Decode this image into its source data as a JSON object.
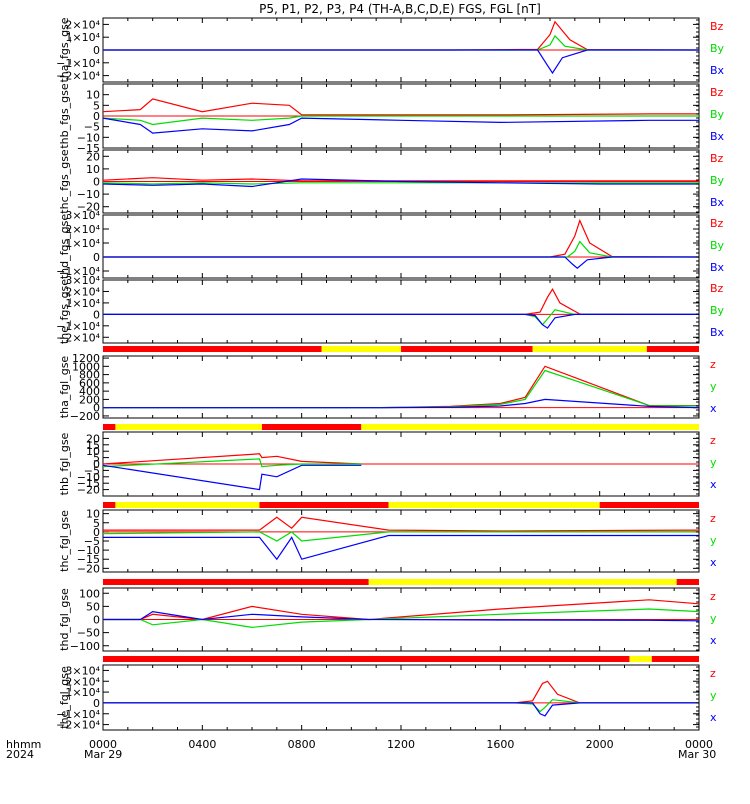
{
  "title": "P5, P1, P2, P3, P4 (TH-A,B,C,D,E) FGS, FGL [nT]",
  "footer": {
    "time_label": "hhmm",
    "year_label": "2024",
    "x_ticks": [
      "0000",
      "0400",
      "0800",
      "1200",
      "1600",
      "2000",
      "0000"
    ],
    "x_dates": [
      "Mar 29",
      "Mar 30"
    ]
  },
  "colors": {
    "x": "#0000ff",
    "y": "#00dd00",
    "z": "#ff0000",
    "bar_red": "#ff0000",
    "bar_yellow": "#ffff00"
  },
  "chart_data": [
    {
      "type": "line",
      "ylabel": "tha_fgs_gse",
      "ylim": [
        -25000,
        25000
      ],
      "yticks": [
        "2×10⁴",
        "1×10⁴",
        "0",
        "−1×10⁴",
        "−2×10⁴"
      ],
      "ytick_values": [
        20000,
        10000,
        0,
        -10000,
        -20000
      ],
      "legend": [
        "Bz",
        "By",
        "Bx"
      ],
      "series": [
        {
          "name": "Bz",
          "x": [
            0,
            14,
            17.5,
            18.0,
            18.2,
            18.8,
            19.5,
            24
          ],
          "y": [
            0,
            0,
            500,
            12000,
            22000,
            8000,
            300,
            0
          ]
        },
        {
          "name": "By",
          "x": [
            0,
            14,
            17.5,
            18.0,
            18.2,
            18.6,
            19.5,
            24
          ],
          "y": [
            0,
            0,
            0,
            4000,
            11000,
            3000,
            0,
            0
          ]
        },
        {
          "name": "Bx",
          "x": [
            0,
            14,
            17.5,
            17.9,
            18.1,
            18.5,
            19.5,
            24
          ],
          "y": [
            0,
            0,
            0,
            -12000,
            -18000,
            -6000,
            0,
            0
          ]
        }
      ]
    },
    {
      "type": "line",
      "ylabel": "thb_fgs_gse",
      "ylim": [
        -15,
        15
      ],
      "yticks": [
        "10",
        "5",
        "0",
        "−5",
        "−10",
        "−15"
      ],
      "ytick_values": [
        10,
        5,
        0,
        -5,
        -10,
        -15
      ],
      "legend": [
        "Bz",
        "By",
        "Bx"
      ],
      "series": [
        {
          "name": "Bz",
          "x": [
            0,
            1.5,
            2,
            4,
            6,
            7.5,
            8,
            12,
            16,
            22,
            24
          ],
          "y": [
            2,
            3,
            8,
            2,
            6,
            5,
            0.5,
            0.5,
            0.5,
            1,
            1
          ]
        },
        {
          "name": "By",
          "x": [
            0,
            1.5,
            2,
            4,
            6,
            7.5,
            8,
            12,
            16,
            22,
            24
          ],
          "y": [
            -1,
            -2,
            -4,
            -1,
            -2,
            -1,
            0,
            0,
            0,
            0,
            0
          ]
        },
        {
          "name": "Bx",
          "x": [
            0,
            1.5,
            2,
            4,
            6,
            7.5,
            8,
            12,
            16,
            22,
            24
          ],
          "y": [
            -1,
            -4,
            -8,
            -6,
            -7,
            -4,
            -1,
            -2,
            -3,
            -2,
            -2
          ]
        }
      ]
    },
    {
      "type": "line",
      "ylabel": "thc_fgs_gse",
      "ylim": [
        -25,
        25
      ],
      "yticks": [
        "20",
        "10",
        "0",
        "−10",
        "−20"
      ],
      "ytick_values": [
        20,
        10,
        0,
        -10,
        -20
      ],
      "legend": [
        "Bz",
        "By",
        "Bx"
      ],
      "series": [
        {
          "name": "Bz",
          "x": [
            0,
            2,
            4,
            6,
            8,
            12,
            16,
            20,
            24
          ],
          "y": [
            1,
            3,
            1,
            2,
            0.5,
            0.5,
            0.5,
            0.5,
            0.5
          ]
        },
        {
          "name": "By",
          "x": [
            0,
            2,
            4,
            6,
            8,
            12,
            16,
            20,
            24
          ],
          "y": [
            -1,
            -2,
            -1,
            -2,
            -1,
            -1,
            -1,
            -1,
            -1
          ]
        },
        {
          "name": "Bx",
          "x": [
            0,
            2,
            4,
            6,
            8,
            12,
            16,
            20,
            24
          ],
          "y": [
            -2,
            -3,
            -2,
            -4,
            2,
            0,
            -1,
            -2,
            -2
          ]
        }
      ]
    },
    {
      "type": "line",
      "ylabel": "thd_fgs_gse",
      "ylim": [
        -15000,
        30000
      ],
      "yticks": [
        "3×10⁴",
        "2×10⁴",
        "1×10⁴",
        "0",
        "−1×10⁴"
      ],
      "ytick_values": [
        30000,
        20000,
        10000,
        0,
        -10000
      ],
      "legend": [
        "Bz",
        "By",
        "Bx"
      ],
      "series": [
        {
          "name": "Bz",
          "x": [
            0,
            18,
            18.6,
            19.0,
            19.2,
            19.6,
            20.5,
            24
          ],
          "y": [
            0,
            0,
            2000,
            15000,
            26000,
            10000,
            300,
            0
          ]
        },
        {
          "name": "By",
          "x": [
            0,
            18,
            18.7,
            19.0,
            19.2,
            19.6,
            20.5,
            24
          ],
          "y": [
            0,
            0,
            0,
            4000,
            11000,
            3000,
            0,
            0
          ]
        },
        {
          "name": "Bx",
          "x": [
            0,
            18,
            18.6,
            18.9,
            19.1,
            19.5,
            20.5,
            24
          ],
          "y": [
            0,
            0,
            0,
            -5000,
            -8000,
            -2000,
            0,
            0
          ]
        }
      ]
    },
    {
      "type": "line",
      "ylabel": "the_fgs_gse",
      "ylim": [
        -25000,
        30000
      ],
      "yticks": [
        "3×10⁴",
        "2×10⁴",
        "1×10⁴",
        "0",
        "−1×10⁴",
        "−2×10⁴"
      ],
      "ytick_values": [
        30000,
        20000,
        10000,
        0,
        -10000,
        -20000
      ],
      "legend": [
        "Bz",
        "By",
        "Bx"
      ],
      "series": [
        {
          "name": "Bz",
          "x": [
            0,
            17,
            17.6,
            17.9,
            18.1,
            18.4,
            19.2,
            24
          ],
          "y": [
            0,
            0,
            2000,
            15000,
            22000,
            10000,
            300,
            0
          ]
        },
        {
          "name": "By",
          "x": [
            0,
            17,
            17.4,
            17.7,
            17.9,
            18.2,
            19.0,
            24
          ],
          "y": [
            0,
            0,
            -2000,
            -9000,
            -4000,
            4000,
            0,
            0
          ]
        },
        {
          "name": "Bx",
          "x": [
            0,
            17,
            17.4,
            17.7,
            17.9,
            18.2,
            19.0,
            24
          ],
          "y": [
            0,
            0,
            -1000,
            -9000,
            -12000,
            -3000,
            0,
            0
          ]
        }
      ]
    },
    {
      "type": "line",
      "ylabel": "tha_fgl_gse",
      "ylim": [
        -250,
        1250
      ],
      "yticks": [
        "1200",
        "1000",
        "800",
        "600",
        "400",
        "200",
        "0",
        "−200"
      ],
      "ytick_values": [
        1200,
        1000,
        800,
        600,
        400,
        200,
        0,
        -200
      ],
      "legend": [
        "z",
        "y",
        "x"
      ],
      "series": [
        {
          "name": "z",
          "x": [
            0,
            8,
            11,
            14,
            16,
            17,
            17.8,
            22,
            24
          ],
          "y": [
            0,
            0,
            0,
            30,
            100,
            250,
            1000,
            50,
            50
          ]
        },
        {
          "name": "y",
          "x": [
            0,
            8,
            11,
            14,
            16,
            17,
            17.8,
            22,
            24
          ],
          "y": [
            0,
            0,
            0,
            20,
            80,
            200,
            900,
            50,
            40
          ]
        },
        {
          "name": "x",
          "x": [
            0,
            8,
            11,
            14,
            16,
            17,
            17.8,
            22,
            24
          ],
          "y": [
            0,
            0,
            0,
            10,
            40,
            100,
            200,
            30,
            0
          ]
        }
      ]
    },
    {
      "type": "line",
      "ylabel": "thb_fgl_gse",
      "ylim": [
        -25,
        25
      ],
      "yticks": [
        "20",
        "15",
        "10",
        "5",
        "0",
        "−5",
        "−10",
        "−15",
        "−20"
      ],
      "ytick_values": [
        20,
        15,
        10,
        5,
        0,
        -5,
        -10,
        -15,
        -20
      ],
      "legend": [
        "z",
        "y",
        "x"
      ],
      "series": [
        {
          "name": "z",
          "x": [
            0,
            6.3,
            6.4,
            7,
            8,
            10.4
          ],
          "y": [
            0,
            8,
            5,
            6,
            2,
            0
          ]
        },
        {
          "name": "y",
          "x": [
            0,
            6.3,
            6.4,
            7,
            8,
            10.4
          ],
          "y": [
            -2,
            4,
            -2,
            -1,
            0,
            0
          ]
        },
        {
          "name": "x",
          "x": [
            0,
            6.3,
            6.4,
            7,
            8,
            10.4
          ],
          "y": [
            -1,
            -20,
            -8,
            -10,
            -1,
            -1
          ]
        }
      ]
    },
    {
      "type": "line",
      "ylabel": "thc_fgl_gse",
      "ylim": [
        -22,
        12
      ],
      "yticks": [
        "10",
        "5",
        "0",
        "−5",
        "−10",
        "−15",
        "−20"
      ],
      "ytick_values": [
        10,
        5,
        0,
        -5,
        -10,
        -15,
        -20
      ],
      "legend": [
        "z",
        "y",
        "x"
      ],
      "series": [
        {
          "name": "z",
          "x": [
            0,
            6.3,
            7,
            7.6,
            8,
            11.5,
            16,
            24
          ],
          "y": [
            1,
            1,
            8,
            2,
            8,
            1,
            0.5,
            1
          ]
        },
        {
          "name": "y",
          "x": [
            0,
            6.3,
            7,
            7.6,
            8,
            11.5,
            16,
            24
          ],
          "y": [
            -1,
            0,
            -5,
            0,
            -5,
            0,
            0,
            0
          ]
        },
        {
          "name": "x",
          "x": [
            0,
            6.3,
            7,
            7.6,
            8,
            11.5,
            16,
            24
          ],
          "y": [
            -3,
            -3,
            -15,
            -3,
            -15,
            -2,
            -2,
            -2
          ]
        }
      ]
    },
    {
      "type": "line",
      "ylabel": "thd_fgl_gse",
      "ylim": [
        -120,
        120
      ],
      "yticks": [
        "100",
        "50",
        "0",
        "−50",
        "−100"
      ],
      "ytick_values": [
        100,
        50,
        0,
        -50,
        -100
      ],
      "legend": [
        "z",
        "y",
        "x"
      ],
      "series": [
        {
          "name": "z",
          "x": [
            0,
            1.5,
            2,
            4,
            6,
            8,
            10.7,
            16,
            22,
            24
          ],
          "y": [
            0,
            0,
            20,
            0,
            50,
            20,
            0,
            40,
            75,
            60
          ]
        },
        {
          "name": "y",
          "x": [
            0,
            1.5,
            2,
            4,
            6,
            8,
            10.7,
            16,
            22,
            24
          ],
          "y": [
            0,
            0,
            -20,
            0,
            -30,
            -10,
            0,
            20,
            40,
            30
          ]
        },
        {
          "name": "x",
          "x": [
            0,
            1.5,
            2,
            4,
            6,
            8,
            10.7,
            16,
            22,
            24
          ],
          "y": [
            0,
            0,
            30,
            0,
            20,
            10,
            0,
            -2,
            -3,
            -5
          ]
        }
      ]
    },
    {
      "type": "line",
      "ylabel": "the_fgl_gse",
      "ylim": [
        -25000,
        35000
      ],
      "yticks": [
        "3×10⁴",
        "2×10⁴",
        "1×10⁴",
        "0",
        "−1×10⁴",
        "−2×10⁴"
      ],
      "ytick_values": [
        30000,
        20000,
        10000,
        0,
        -10000,
        -20000
      ],
      "legend": [
        "z",
        "y",
        "x"
      ],
      "series": [
        {
          "name": "z",
          "x": [
            0,
            16.6,
            17.3,
            17.7,
            17.9,
            18.3,
            19.2,
            24
          ],
          "y": [
            0,
            0,
            2000,
            18000,
            20000,
            8000,
            0,
            0
          ]
        },
        {
          "name": "y",
          "x": [
            0,
            16.6,
            17.3,
            17.6,
            17.8,
            18.1,
            19.2,
            24
          ],
          "y": [
            0,
            0,
            -1000,
            -8000,
            -4000,
            3000,
            0,
            0
          ]
        },
        {
          "name": "x",
          "x": [
            0,
            16.6,
            17.3,
            17.6,
            17.8,
            18.1,
            19.2,
            24
          ],
          "y": [
            0,
            0,
            0,
            -10000,
            -12000,
            -2000,
            0,
            0
          ]
        }
      ]
    }
  ],
  "mode_bars": [
    {
      "segments": [
        {
          "x": [
            0,
            8.8
          ],
          "color": "red"
        },
        {
          "x": [
            8.8,
            12
          ],
          "color": "yellow"
        },
        {
          "x": [
            12,
            17.3
          ],
          "color": "red"
        },
        {
          "x": [
            17.3,
            21.9
          ],
          "color": "yellow"
        },
        {
          "x": [
            21.9,
            24
          ],
          "color": "red"
        }
      ]
    },
    {
      "segments": [
        {
          "x": [
            0,
            0.5
          ],
          "color": "red"
        },
        {
          "x": [
            0.5,
            6.4
          ],
          "color": "yellow"
        },
        {
          "x": [
            6.4,
            10.4
          ],
          "color": "red"
        },
        {
          "x": [
            10.4,
            24
          ],
          "color": "yellow"
        }
      ]
    },
    {
      "segments": [
        {
          "x": [
            0,
            0.5
          ],
          "color": "red"
        },
        {
          "x": [
            0.5,
            6.3
          ],
          "color": "yellow"
        },
        {
          "x": [
            6.3,
            11.5
          ],
          "color": "red"
        },
        {
          "x": [
            11.5,
            20
          ],
          "color": "yellow"
        },
        {
          "x": [
            20,
            24
          ],
          "color": "red"
        }
      ]
    },
    {
      "segments": [
        {
          "x": [
            0,
            10.7
          ],
          "color": "red"
        },
        {
          "x": [
            10.7,
            23.1
          ],
          "color": "yellow"
        },
        {
          "x": [
            23.1,
            24
          ],
          "color": "red"
        }
      ]
    },
    {
      "segments": [
        {
          "x": [
            0,
            21.2
          ],
          "color": "red"
        },
        {
          "x": [
            21.2,
            22.1
          ],
          "color": "yellow"
        },
        {
          "x": [
            22.1,
            24
          ],
          "color": "red"
        }
      ]
    }
  ]
}
